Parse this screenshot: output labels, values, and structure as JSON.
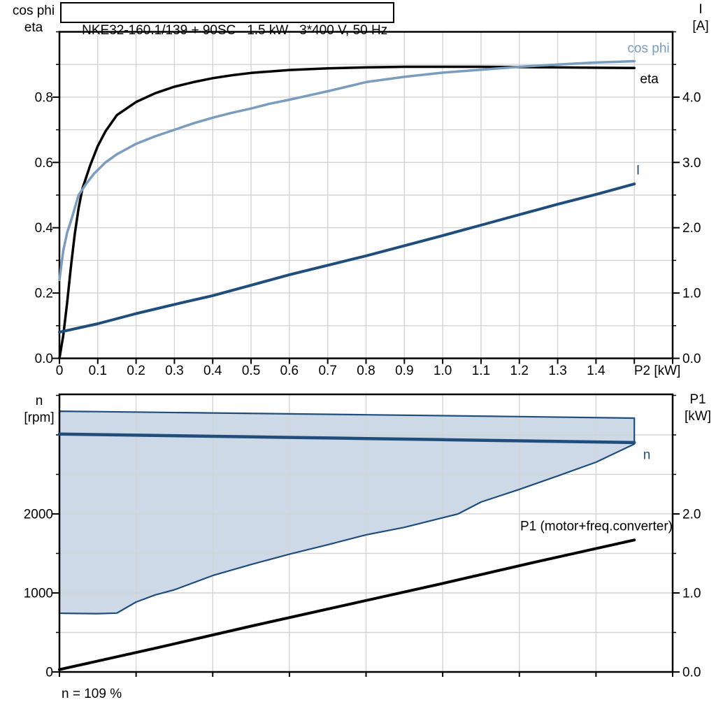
{
  "colors": {
    "frame": "#000000",
    "grid": "#d4d4d4",
    "black": "#000000",
    "dark_blue": "#1f4e7c",
    "light_blue": "#7a9cbe",
    "area_fill": "#cdd9e7",
    "background": "#ffffff"
  },
  "chart_data": [
    {
      "id": "top",
      "type": "line",
      "title": "NKE32-160.1/139 + 90SC   1.5 kW   3*400 V, 50 Hz",
      "x_axis": {
        "range": [
          0,
          1.6
        ],
        "tick_step": 0.1,
        "grid_step": 0.1,
        "tick_labels": [
          "0",
          "0.1",
          "0.2",
          "0.3",
          "0.4",
          "0.5",
          "0.6",
          "0.7",
          "0.8",
          "0.9",
          "1.0",
          "1.1",
          "1.2",
          "1.3",
          "1.4"
        ],
        "unit_label": "P2 [kW]",
        "unit_label_x": 1.56
      },
      "left_axis": {
        "title_lines": [
          "cos phi",
          "eta"
        ],
        "range": [
          0,
          1.0
        ],
        "minor_step": 0.1,
        "grid_step": 0.1,
        "label_values": [
          0,
          0.2,
          0.4,
          0.6,
          0.8
        ],
        "tick_labels": [
          "0.0",
          "0.2",
          "0.4",
          "0.6",
          "0.8"
        ]
      },
      "right_axis": {
        "title_lines": [
          "I",
          "[A]"
        ],
        "range": [
          0,
          5.0
        ],
        "minor_step": 0.5,
        "label_values": [
          0,
          1,
          2,
          3,
          4
        ],
        "tick_labels": [
          "0.0",
          "1.0",
          "2.0",
          "3.0",
          "4.0"
        ]
      },
      "series": [
        {
          "name": "eta",
          "axis": "left",
          "color": "#000000",
          "width": 3.5,
          "label": "eta",
          "label_color": "#000000",
          "label_at": {
            "x": 1.515,
            "y": 0.857,
            "anchor": "start"
          },
          "points": [
            [
              0,
              0
            ],
            [
              0.01,
              0.07
            ],
            [
              0.02,
              0.17
            ],
            [
              0.03,
              0.28
            ],
            [
              0.04,
              0.38
            ],
            [
              0.05,
              0.46
            ],
            [
              0.06,
              0.52
            ],
            [
              0.08,
              0.59
            ],
            [
              0.1,
              0.65
            ],
            [
              0.12,
              0.695
            ],
            [
              0.15,
              0.745
            ],
            [
              0.2,
              0.785
            ],
            [
              0.25,
              0.812
            ],
            [
              0.3,
              0.832
            ],
            [
              0.35,
              0.846
            ],
            [
              0.4,
              0.858
            ],
            [
              0.45,
              0.867
            ],
            [
              0.5,
              0.874
            ],
            [
              0.6,
              0.883
            ],
            [
              0.7,
              0.888
            ],
            [
              0.8,
              0.891
            ],
            [
              0.9,
              0.893
            ],
            [
              1.0,
              0.893
            ],
            [
              1.1,
              0.893
            ],
            [
              1.2,
              0.892
            ],
            [
              1.3,
              0.891
            ],
            [
              1.4,
              0.89
            ],
            [
              1.5,
              0.889
            ]
          ]
        },
        {
          "name": "cos_phi",
          "axis": "left",
          "color": "#7a9cbe",
          "width": 3.5,
          "label": "cos phi",
          "label_color": "#7a9cbe",
          "label_at": {
            "x": 1.592,
            "y": 0.951,
            "anchor": "end"
          },
          "points": [
            [
              0,
              0.24
            ],
            [
              0.01,
              0.33
            ],
            [
              0.02,
              0.385
            ],
            [
              0.03,
              0.42
            ],
            [
              0.05,
              0.5
            ],
            [
              0.07,
              0.535
            ],
            [
              0.09,
              0.565
            ],
            [
              0.12,
              0.6
            ],
            [
              0.15,
              0.625
            ],
            [
              0.2,
              0.657
            ],
            [
              0.25,
              0.68
            ],
            [
              0.3,
              0.7
            ],
            [
              0.35,
              0.72
            ],
            [
              0.4,
              0.737
            ],
            [
              0.45,
              0.752
            ],
            [
              0.5,
              0.765
            ],
            [
              0.55,
              0.78
            ],
            [
              0.6,
              0.792
            ],
            [
              0.65,
              0.805
            ],
            [
              0.7,
              0.818
            ],
            [
              0.75,
              0.832
            ],
            [
              0.8,
              0.846
            ],
            [
              0.9,
              0.862
            ],
            [
              1.0,
              0.875
            ],
            [
              1.1,
              0.884
            ],
            [
              1.2,
              0.893
            ],
            [
              1.3,
              0.9
            ],
            [
              1.4,
              0.906
            ],
            [
              1.5,
              0.91
            ]
          ]
        },
        {
          "name": "I",
          "axis": "right",
          "color": "#1f4e7c",
          "width": 4,
          "label": "I",
          "label_color": "#1f4e7c",
          "label_at": {
            "x": 1.505,
            "y": 2.886,
            "anchor": "start"
          },
          "points": [
            [
              0,
              0.4
            ],
            [
              0.1,
              0.53
            ],
            [
              0.2,
              0.685
            ],
            [
              0.3,
              0.825
            ],
            [
              0.4,
              0.96
            ],
            [
              0.5,
              1.12
            ],
            [
              0.6,
              1.28
            ],
            [
              0.7,
              1.425
            ],
            [
              0.8,
              1.57
            ],
            [
              0.9,
              1.725
            ],
            [
              1.0,
              1.88
            ],
            [
              1.1,
              2.04
            ],
            [
              1.2,
              2.2
            ],
            [
              1.3,
              2.36
            ],
            [
              1.4,
              2.51
            ],
            [
              1.5,
              2.67
            ]
          ]
        }
      ]
    },
    {
      "id": "bottom",
      "type": "line",
      "x_axis": {
        "range": [
          0,
          1.6
        ],
        "tick_step": 0.2,
        "grid_step": 0.2,
        "tick_labels": [],
        "unit_label": "",
        "unit_label_x": null
      },
      "left_axis": {
        "title_lines": [
          "n",
          "[rpm]"
        ],
        "range": [
          0,
          3513
        ],
        "minor_step": 500,
        "grid_step": 500,
        "label_values": [
          0,
          1000,
          2000
        ],
        "tick_labels": [
          "0",
          "1000",
          "2000"
        ]
      },
      "right_axis": {
        "title_lines": [
          "P1",
          "[kW]"
        ],
        "range": [
          0,
          3.513
        ],
        "minor_step": 0.5,
        "label_values": [
          0,
          1,
          2
        ],
        "tick_labels": [
          "0.0",
          "1.0",
          "2.0"
        ]
      },
      "envelope": {
        "name": "speed-control-range",
        "fill": "#cdd9e7",
        "stroke": "#1f4e7c",
        "stroke_width": 2.2,
        "points": [
          [
            0,
            3300
          ],
          [
            0.4,
            3278
          ],
          [
            0.8,
            3255
          ],
          [
            1.2,
            3232
          ],
          [
            1.5,
            3212
          ],
          [
            1.5,
            2885
          ],
          [
            1.45,
            2770
          ],
          [
            1.4,
            2655
          ],
          [
            1.3,
            2480
          ],
          [
            1.2,
            2310
          ],
          [
            1.1,
            2150
          ],
          [
            1.04,
            2000
          ],
          [
            0.9,
            1830
          ],
          [
            0.8,
            1735
          ],
          [
            0.7,
            1610
          ],
          [
            0.6,
            1490
          ],
          [
            0.5,
            1360
          ],
          [
            0.4,
            1220
          ],
          [
            0.3,
            1040
          ],
          [
            0.25,
            975
          ],
          [
            0.2,
            885
          ],
          [
            0.15,
            745
          ],
          [
            0.1,
            738
          ],
          [
            0.05,
            740
          ],
          [
            0,
            743
          ]
        ]
      },
      "series": [
        {
          "name": "n",
          "axis": "left",
          "color": "#1f4e7c",
          "width": 4.5,
          "label": "n",
          "label_color": "#1f4e7c",
          "label_at": {
            "x": 1.523,
            "y": 2750,
            "anchor": "start"
          },
          "points": [
            [
              0,
              3010
            ],
            [
              0.25,
              2993
            ],
            [
              0.5,
              2975
            ],
            [
              0.75,
              2957
            ],
            [
              1.0,
              2940
            ],
            [
              1.25,
              2921
            ],
            [
              1.5,
              2903
            ]
          ]
        },
        {
          "name": "P1",
          "axis": "right",
          "color": "#000000",
          "width": 4,
          "label": "P1 (motor+freq.converter)",
          "label_color": "#000000",
          "label_at": {
            "x": 1.6,
            "y": 1.85,
            "anchor": "end"
          },
          "points": [
            [
              0,
              0.03
            ],
            [
              0.25,
              0.3
            ],
            [
              0.5,
              0.58
            ],
            [
              0.75,
              0.85
            ],
            [
              1.0,
              1.12
            ],
            [
              1.25,
              1.4
            ],
            [
              1.5,
              1.67
            ]
          ]
        }
      ],
      "annotation": "n = 109 %"
    }
  ]
}
